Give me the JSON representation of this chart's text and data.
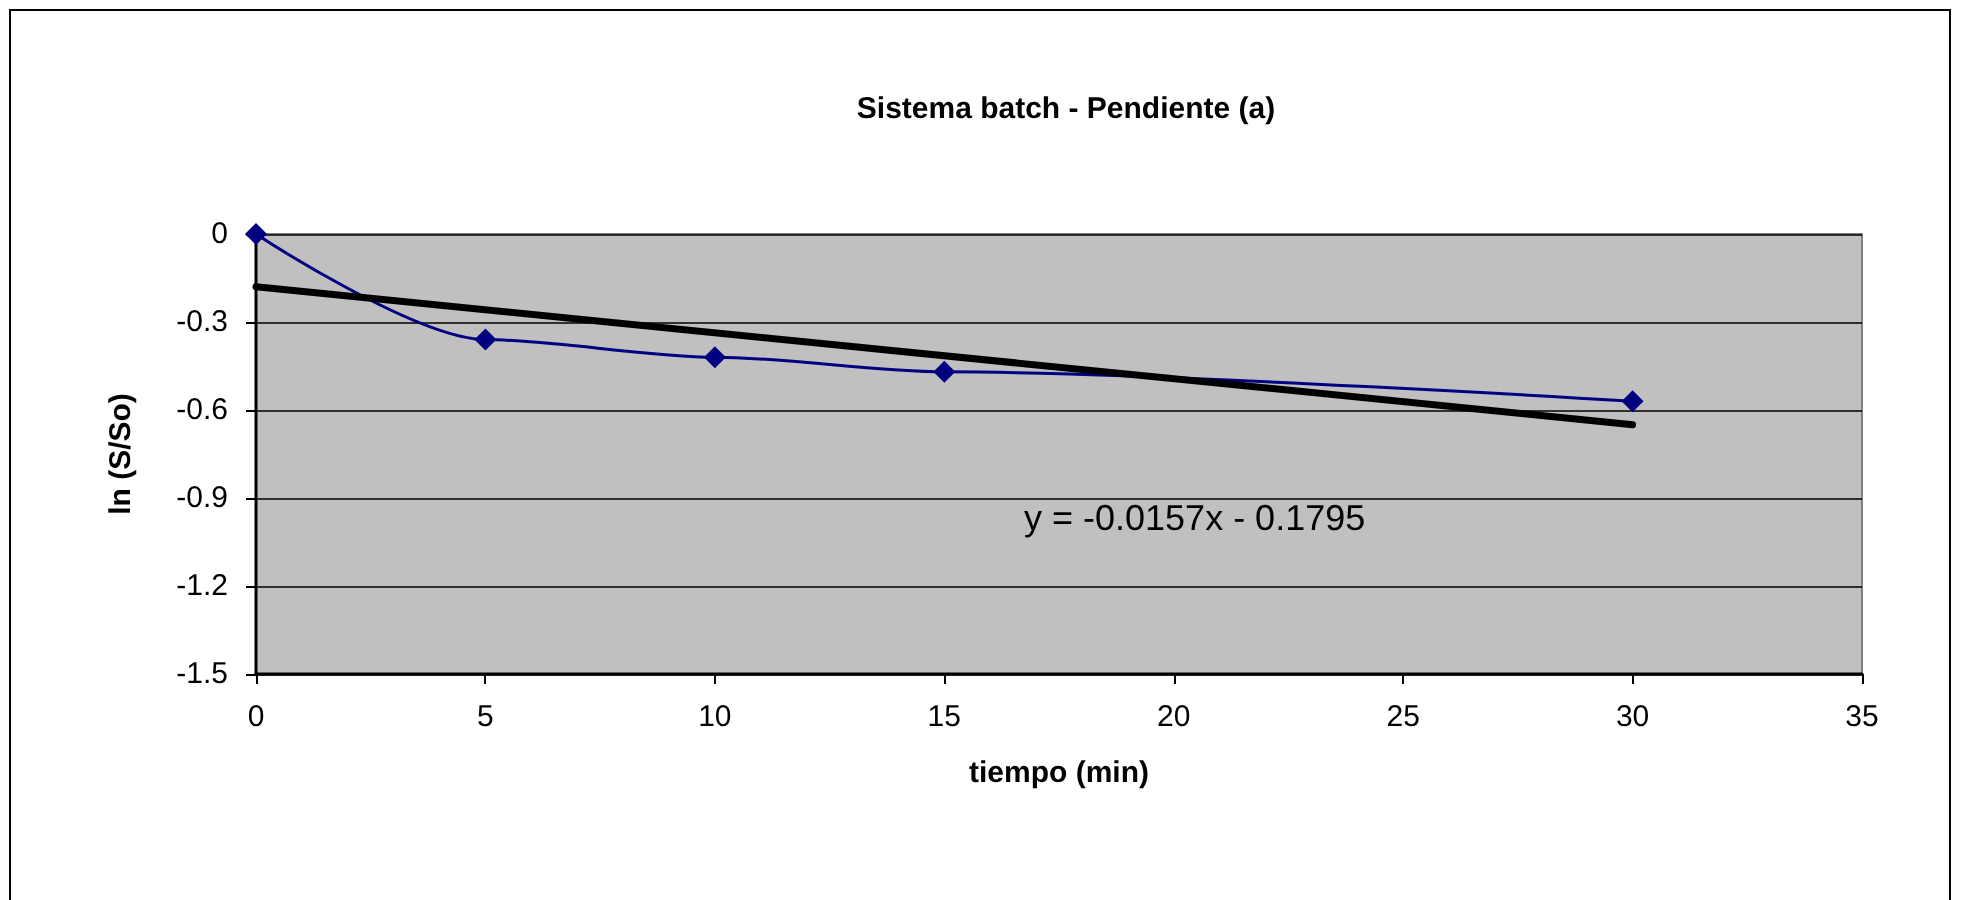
{
  "chart_data": {
    "type": "line",
    "title": "Sistema batch - Pendiente (a)",
    "xlabel": "tiempo (min)",
    "ylabel": "ln (S/So)",
    "x": [
      0,
      5,
      10,
      15,
      30
    ],
    "series": [
      {
        "color": "#000080",
        "values": [
          0,
          -0.36,
          -0.42,
          -0.47,
          -0.57
        ],
        "marker": "diamond"
      },
      {
        "color": "#000000",
        "x": [
          0,
          30
        ],
        "values": [
          -0.18,
          -0.65
        ],
        "marker": "none"
      }
    ],
    "annotations": [
      "y = -0.0157x - 0.1795"
    ],
    "xlim": [
      0,
      35
    ],
    "xticks": [
      0,
      5,
      10,
      15,
      20,
      25,
      30,
      35
    ],
    "ylim": [
      -1.5,
      0
    ],
    "yticks": [
      -1.5,
      -1.2,
      -0.9,
      -0.6,
      -0.3,
      0
    ],
    "grid": "y"
  }
}
